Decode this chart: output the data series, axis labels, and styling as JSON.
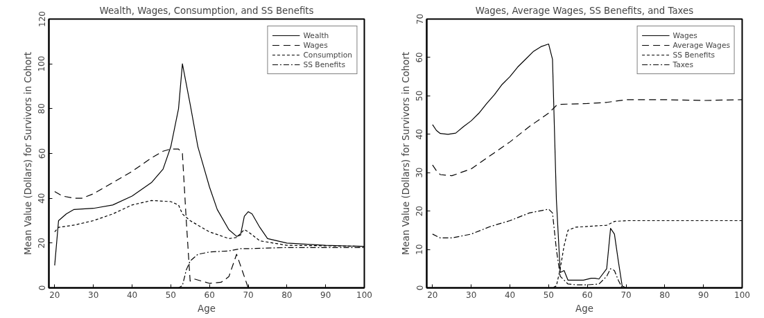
{
  "chart_data": [
    {
      "type": "line",
      "title": "Wealth, Wages, Consumption, and SS Benefits",
      "xlabel": "Age",
      "ylabel": "Mean Value (Dollars) for Survivors in Cohort",
      "xlim": [
        18.5,
        100
      ],
      "xticks": [
        20,
        30,
        40,
        50,
        60,
        70,
        80,
        90,
        100
      ],
      "ylim": [
        0,
        120
      ],
      "yticks": [
        0,
        20,
        40,
        60,
        80,
        100,
        120
      ],
      "grid": false,
      "legend": "top right",
      "series": [
        {
          "name": "Wealth",
          "color": "#000000",
          "line_style": "solid",
          "x": [
            20,
            21,
            23,
            25,
            30,
            35,
            40,
            45,
            48,
            50,
            52,
            53,
            55,
            57,
            60,
            62,
            65,
            67,
            68,
            69,
            70,
            71,
            73,
            75,
            80,
            90,
            100
          ],
          "values": [
            10,
            30,
            33,
            35,
            35.5,
            37,
            41,
            47,
            53,
            63,
            80,
            100,
            82,
            63,
            45,
            35,
            26,
            23,
            23.5,
            32,
            34,
            33,
            27,
            22,
            20,
            19,
            18.5
          ]
        },
        {
          "name": "Wages",
          "color": "#000000",
          "line_style": "longdash",
          "x": [
            20,
            22,
            25,
            27,
            30,
            35,
            40,
            45,
            48,
            50,
            52,
            53,
            54,
            55,
            56,
            58,
            60,
            63,
            65,
            67,
            68,
            70,
            80,
            90,
            100
          ],
          "values": [
            43,
            41,
            40,
            40,
            42,
            47,
            52,
            58,
            61,
            62,
            62,
            60,
            30,
            3,
            4,
            3,
            2,
            2.5,
            5,
            15,
            10,
            0,
            0,
            0,
            0
          ]
        },
        {
          "name": "Consumption",
          "color": "#000000",
          "line_style": "dashed",
          "x": [
            20,
            21,
            25,
            30,
            35,
            40,
            45,
            50,
            52,
            53,
            55,
            60,
            65,
            67,
            69,
            70,
            73,
            80,
            100
          ],
          "values": [
            25,
            27,
            28,
            30,
            33,
            37,
            39,
            38.5,
            37,
            33,
            30,
            25,
            22,
            22.5,
            26,
            25,
            21,
            19,
            18.5
          ]
        },
        {
          "name": "SS Benefits",
          "color": "#000000",
          "line_style": "dashdot",
          "x": [
            20,
            52,
            53,
            54,
            55,
            57,
            60,
            65,
            68,
            70,
            80,
            100
          ],
          "values": [
            0,
            0,
            1,
            8,
            12,
            15,
            16,
            16.5,
            17.5,
            17.5,
            18,
            18
          ]
        }
      ]
    },
    {
      "type": "line",
      "title": "Wages, Average Wages, SS Benefits, and Taxes",
      "xlabel": "Age",
      "ylabel": "Mean Value (Dollars) for Survivors in Cohort",
      "xlim": [
        18.5,
        100
      ],
      "xticks": [
        20,
        30,
        40,
        50,
        60,
        70,
        80,
        90,
        100
      ],
      "ylim": [
        0,
        70
      ],
      "yticks": [
        0,
        10,
        20,
        30,
        40,
        50,
        60,
        70
      ],
      "grid": false,
      "legend": "top right",
      "series": [
        {
          "name": "Wages",
          "color": "#000000",
          "line_style": "solid",
          "x": [
            20,
            21,
            22,
            24,
            26,
            28,
            30,
            32,
            34,
            36,
            38,
            40,
            42,
            44,
            46,
            48,
            50,
            51,
            52,
            53,
            54,
            55,
            57,
            59,
            61,
            62,
            63,
            65,
            66,
            67,
            68,
            69,
            70,
            100
          ],
          "values": [
            42.5,
            41,
            40.2,
            40,
            40.3,
            42,
            43.5,
            45.5,
            48,
            50.3,
            53,
            55,
            57.5,
            59.5,
            61.5,
            62.8,
            63.5,
            59.5,
            23,
            4,
            4.5,
            2,
            2,
            2,
            2.5,
            2.5,
            2.3,
            5,
            15.5,
            14,
            7,
            0.5,
            0,
            0
          ]
        },
        {
          "name": "Average Wages",
          "color": "#000000",
          "line_style": "longdash",
          "x": [
            20,
            21,
            22,
            25,
            30,
            35,
            40,
            45,
            50,
            52,
            53,
            60,
            65,
            70,
            80,
            90,
            100
          ],
          "values": [
            32,
            30.5,
            29.5,
            29.2,
            31,
            34.5,
            38,
            42,
            45.5,
            47.5,
            47.8,
            48,
            48.3,
            49,
            49,
            48.8,
            49
          ]
        },
        {
          "name": "SS Benefits",
          "color": "#000000",
          "line_style": "dashed",
          "x": [
            20,
            51,
            52,
            53,
            54,
            55,
            57,
            60,
            65,
            67,
            70,
            100
          ],
          "values": [
            0,
            0,
            0.5,
            5,
            11,
            15,
            15.8,
            16,
            16.3,
            17.3,
            17.5,
            17.5
          ]
        },
        {
          "name": "Taxes",
          "color": "#000000",
          "line_style": "dashdot",
          "x": [
            20,
            22,
            25,
            30,
            35,
            40,
            45,
            50,
            51,
            52,
            53,
            55,
            57,
            60,
            63,
            65,
            66,
            67,
            68,
            69,
            100
          ],
          "values": [
            14,
            13,
            13,
            14,
            16,
            17.5,
            19.5,
            20.5,
            19.5,
            10,
            3,
            1,
            0.8,
            0.8,
            1,
            3,
            5,
            4.5,
            2,
            0,
            0
          ]
        }
      ]
    }
  ]
}
